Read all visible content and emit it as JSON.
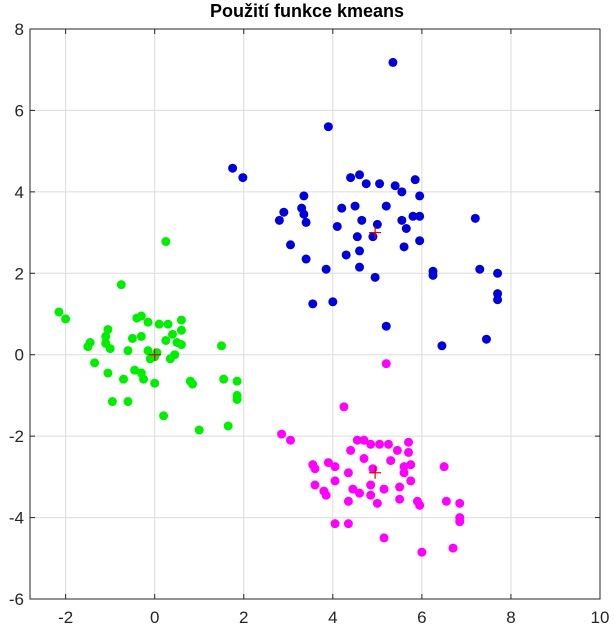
{
  "chart_data": {
    "type": "scatter",
    "title": "Použití funkce kmeans",
    "xlabel": "",
    "ylabel": "",
    "xlim": [
      -2.8,
      10
    ],
    "ylim": [
      -6,
      8
    ],
    "xticks": [
      -2,
      0,
      2,
      4,
      6,
      8,
      10
    ],
    "yticks": [
      -6,
      -4,
      -2,
      0,
      2,
      4,
      6,
      8
    ],
    "grid": true,
    "series": [
      {
        "color": "#0000dd",
        "points": [
          [
            5.35,
            7.18
          ],
          [
            3.9,
            5.6
          ],
          [
            1.75,
            4.58
          ],
          [
            1.98,
            4.35
          ],
          [
            4.4,
            4.35
          ],
          [
            4.6,
            4.42
          ],
          [
            4.75,
            4.2
          ],
          [
            5.05,
            4.2
          ],
          [
            5.4,
            4.15
          ],
          [
            5.85,
            4.3
          ],
          [
            3.35,
            3.9
          ],
          [
            4.2,
            3.6
          ],
          [
            4.5,
            3.65
          ],
          [
            5.2,
            3.65
          ],
          [
            5.55,
            4.0
          ],
          [
            5.95,
            3.9
          ],
          [
            2.9,
            3.5
          ],
          [
            2.8,
            3.3
          ],
          [
            3.3,
            3.6
          ],
          [
            3.35,
            3.45
          ],
          [
            3.4,
            3.25
          ],
          [
            3.05,
            2.7
          ],
          [
            3.4,
            2.35
          ],
          [
            3.85,
            2.1
          ],
          [
            4.1,
            3.15
          ],
          [
            4.3,
            2.45
          ],
          [
            4.55,
            2.9
          ],
          [
            4.65,
            3.3
          ],
          [
            4.6,
            2.55
          ],
          [
            4.9,
            2.9
          ],
          [
            5.0,
            3.2
          ],
          [
            5.55,
            3.3
          ],
          [
            5.65,
            3.1
          ],
          [
            5.8,
            3.4
          ],
          [
            5.95,
            3.4
          ],
          [
            5.6,
            2.65
          ],
          [
            5.95,
            2.8
          ],
          [
            4.6,
            2.15
          ],
          [
            4.95,
            1.9
          ],
          [
            6.25,
            2.05
          ],
          [
            6.25,
            1.95
          ],
          [
            7.2,
            3.35
          ],
          [
            7.3,
            2.1
          ],
          [
            7.7,
            2.0
          ],
          [
            7.7,
            1.5
          ],
          [
            7.7,
            1.35
          ],
          [
            3.55,
            1.25
          ],
          [
            4.0,
            1.3
          ],
          [
            5.2,
            0.7
          ],
          [
            6.45,
            0.22
          ],
          [
            7.45,
            0.38
          ]
        ]
      },
      {
        "color": "#00ee00",
        "points": [
          [
            0.25,
            2.78
          ],
          [
            -0.75,
            1.72
          ],
          [
            -2.15,
            1.05
          ],
          [
            -2.0,
            0.88
          ],
          [
            -1.45,
            0.3
          ],
          [
            -1.5,
            0.2
          ],
          [
            -1.05,
            0.62
          ],
          [
            -1.1,
            0.45
          ],
          [
            -1.1,
            0.28
          ],
          [
            -1.0,
            0.15
          ],
          [
            -0.4,
            0.9
          ],
          [
            -0.3,
            0.95
          ],
          [
            -0.15,
            0.8
          ],
          [
            0.1,
            0.75
          ],
          [
            0.3,
            0.75
          ],
          [
            0.6,
            0.85
          ],
          [
            0.6,
            0.6
          ],
          [
            -0.5,
            0.4
          ],
          [
            -0.3,
            0.45
          ],
          [
            -0.15,
            0.1
          ],
          [
            0.05,
            0.05
          ],
          [
            0.25,
            0.35
          ],
          [
            0.4,
            0.5
          ],
          [
            0.5,
            0.3
          ],
          [
            0.6,
            0.25
          ],
          [
            0.45,
            0.0
          ],
          [
            0.35,
            -0.1
          ],
          [
            -1.35,
            -0.2
          ],
          [
            -0.6,
            0.1
          ],
          [
            -0.1,
            -0.1
          ],
          [
            0.0,
            -0.05
          ],
          [
            -1.05,
            -0.45
          ],
          [
            -0.45,
            -0.38
          ],
          [
            -0.3,
            -0.45
          ],
          [
            -0.7,
            -0.6
          ],
          [
            -0.25,
            -0.6
          ],
          [
            0.0,
            -0.7
          ],
          [
            0.8,
            -0.65
          ],
          [
            0.85,
            -0.72
          ],
          [
            1.5,
            0.22
          ],
          [
            1.55,
            -0.6
          ],
          [
            1.85,
            -0.65
          ],
          [
            1.85,
            -1.0
          ],
          [
            1.85,
            -1.1
          ],
          [
            -0.95,
            -1.15
          ],
          [
            -0.6,
            -1.15
          ],
          [
            0.2,
            -1.5
          ],
          [
            1.0,
            -1.85
          ],
          [
            1.65,
            -1.75
          ]
        ]
      },
      {
        "color": "#ff00ff",
        "points": [
          [
            5.2,
            -0.22
          ],
          [
            4.25,
            -1.28
          ],
          [
            2.85,
            -1.95
          ],
          [
            3.05,
            -2.1
          ],
          [
            4.4,
            -2.35
          ],
          [
            4.55,
            -2.1
          ],
          [
            4.7,
            -2.1
          ],
          [
            4.85,
            -2.2
          ],
          [
            5.05,
            -2.2
          ],
          [
            5.25,
            -2.2
          ],
          [
            5.45,
            -2.35
          ],
          [
            5.7,
            -2.15
          ],
          [
            5.7,
            -2.4
          ],
          [
            3.55,
            -2.7
          ],
          [
            3.6,
            -2.8
          ],
          [
            3.9,
            -2.65
          ],
          [
            4.05,
            -2.75
          ],
          [
            4.35,
            -2.9
          ],
          [
            4.7,
            -2.55
          ],
          [
            4.9,
            -2.8
          ],
          [
            5.3,
            -2.6
          ],
          [
            5.6,
            -2.75
          ],
          [
            5.75,
            -2.7
          ],
          [
            5.6,
            -2.9
          ],
          [
            6.5,
            -2.75
          ],
          [
            3.6,
            -3.2
          ],
          [
            3.8,
            -3.35
          ],
          [
            4.05,
            -3.1
          ],
          [
            4.45,
            -3.3
          ],
          [
            4.6,
            -3.4
          ],
          [
            4.85,
            -3.2
          ],
          [
            5.15,
            -3.3
          ],
          [
            5.5,
            -3.25
          ],
          [
            5.75,
            -3.1
          ],
          [
            3.85,
            -3.45
          ],
          [
            4.35,
            -3.6
          ],
          [
            4.85,
            -3.45
          ],
          [
            5.0,
            -3.65
          ],
          [
            5.5,
            -3.55
          ],
          [
            5.9,
            -3.6
          ],
          [
            5.95,
            -3.7
          ],
          [
            6.55,
            -3.6
          ],
          [
            6.85,
            -3.65
          ],
          [
            6.85,
            -4.0
          ],
          [
            6.85,
            -4.1
          ],
          [
            4.05,
            -4.15
          ],
          [
            4.35,
            -4.15
          ],
          [
            5.15,
            -4.5
          ],
          [
            6.0,
            -4.85
          ],
          [
            6.7,
            -4.75
          ]
        ]
      }
    ],
    "centroids": {
      "color": "#dd0000",
      "points": [
        [
          4.95,
          3.0
        ],
        [
          0.0,
          0.0
        ],
        [
          4.95,
          -2.9
        ]
      ]
    }
  }
}
